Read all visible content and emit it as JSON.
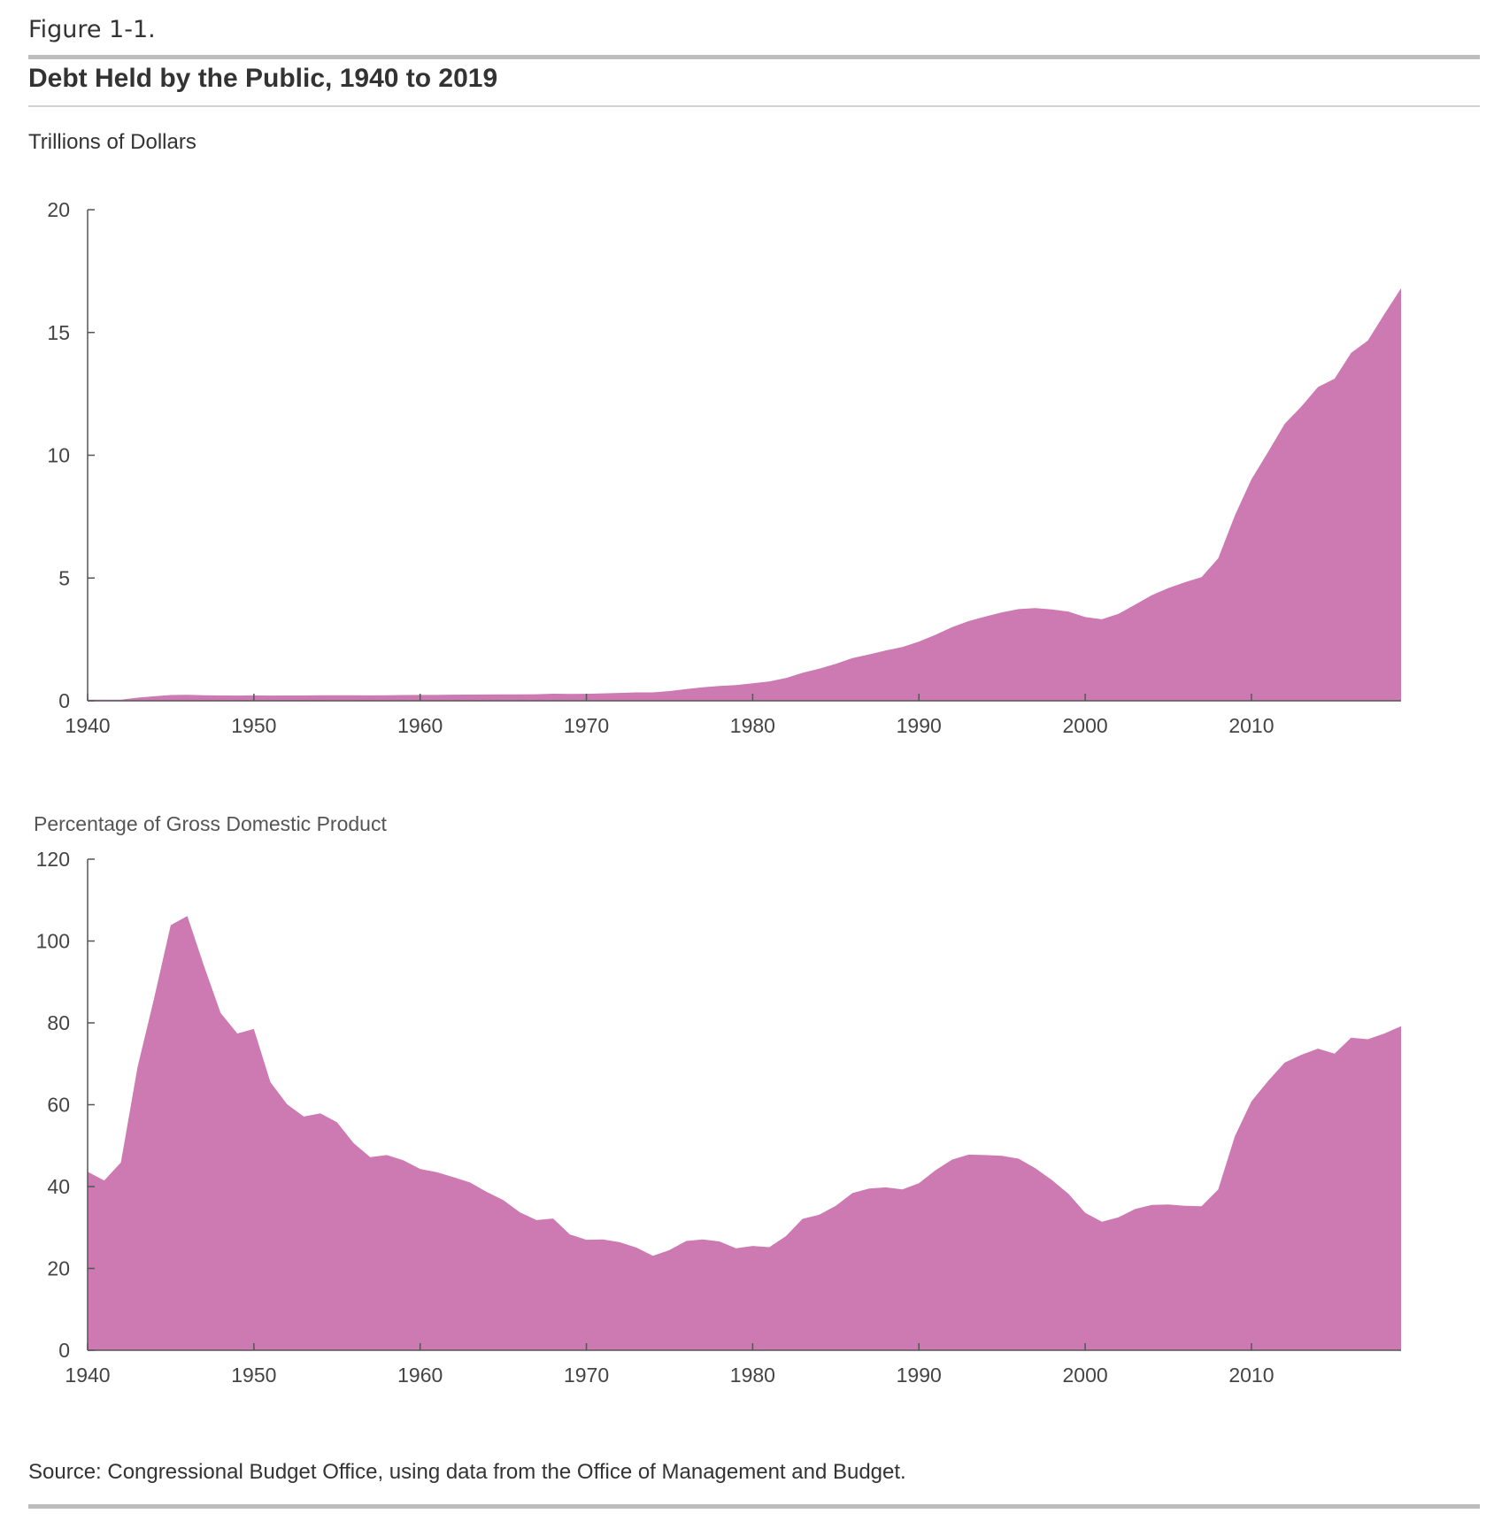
{
  "figure_label": "Figure 1-1.",
  "title": "Debt Held by the Public, 1940 to 2019",
  "source": "Source: Congressional Budget Office, using data from the Office of Management and Budget.",
  "fill_color": "#CD79B2",
  "chart_data": [
    {
      "type": "area",
      "ylabel": "Trillions of Dollars",
      "xlim": [
        1940,
        2019
      ],
      "ylim": [
        0,
        20
      ],
      "yticks": [
        "0",
        "5",
        "10",
        "15",
        "20"
      ],
      "xticks": [
        "1940",
        "1950",
        "1960",
        "1970",
        "1980",
        "1990",
        "2000",
        "2010"
      ],
      "grid": false,
      "x_start": 1940,
      "values": [
        0.043,
        0.044,
        0.048,
        0.127,
        0.184,
        0.235,
        0.242,
        0.224,
        0.216,
        0.214,
        0.219,
        0.214,
        0.215,
        0.218,
        0.224,
        0.227,
        0.222,
        0.219,
        0.226,
        0.235,
        0.237,
        0.238,
        0.248,
        0.254,
        0.257,
        0.261,
        0.264,
        0.267,
        0.29,
        0.278,
        0.283,
        0.303,
        0.322,
        0.341,
        0.344,
        0.395,
        0.477,
        0.549,
        0.607,
        0.64,
        0.712,
        0.789,
        0.925,
        1.137,
        1.307,
        1.507,
        1.741,
        1.89,
        2.052,
        2.191,
        2.412,
        2.689,
        3.0,
        3.248,
        3.433,
        3.604,
        3.734,
        3.772,
        3.721,
        3.632,
        3.41,
        3.32,
        3.54,
        3.913,
        4.296,
        4.592,
        4.829,
        5.035,
        5.803,
        7.545,
        9.019,
        10.128,
        11.281,
        11.983,
        12.78,
        13.117,
        14.168,
        14.665,
        15.75,
        16.801
      ]
    },
    {
      "type": "area",
      "ylabel": "Percentage of Gross Domestic Product",
      "xlim": [
        1940,
        2019
      ],
      "ylim": [
        0,
        120
      ],
      "yticks": [
        "0",
        "20",
        "40",
        "60",
        "80",
        "100",
        "120"
      ],
      "xticks": [
        "1940",
        "1950",
        "1960",
        "1970",
        "1980",
        "1990",
        "2000",
        "2010"
      ],
      "grid": false,
      "x_start": 1940,
      "values": [
        43.6,
        41.5,
        45.9,
        69.2,
        86.0,
        103.9,
        106.1,
        93.9,
        82.4,
        77.4,
        78.5,
        65.5,
        60.1,
        57.1,
        57.9,
        55.7,
        50.6,
        47.2,
        47.7,
        46.4,
        44.3,
        43.5,
        42.3,
        41.0,
        38.7,
        36.7,
        33.7,
        31.8,
        32.2,
        28.3,
        27.0,
        27.1,
        26.4,
        25.1,
        23.1,
        24.5,
        26.7,
        27.1,
        26.6,
        24.9,
        25.5,
        25.2,
        27.9,
        32.1,
        33.1,
        35.3,
        38.4,
        39.5,
        39.8,
        39.3,
        40.8,
        44.0,
        46.6,
        47.8,
        47.7,
        47.5,
        46.8,
        44.5,
        41.6,
        38.2,
        33.6,
        31.4,
        32.5,
        34.5,
        35.5,
        35.6,
        35.3,
        35.2,
        39.3,
        52.3,
        60.8,
        65.8,
        70.3,
        72.2,
        73.7,
        72.5,
        76.4,
        76.0,
        77.4,
        79.2
      ]
    }
  ]
}
